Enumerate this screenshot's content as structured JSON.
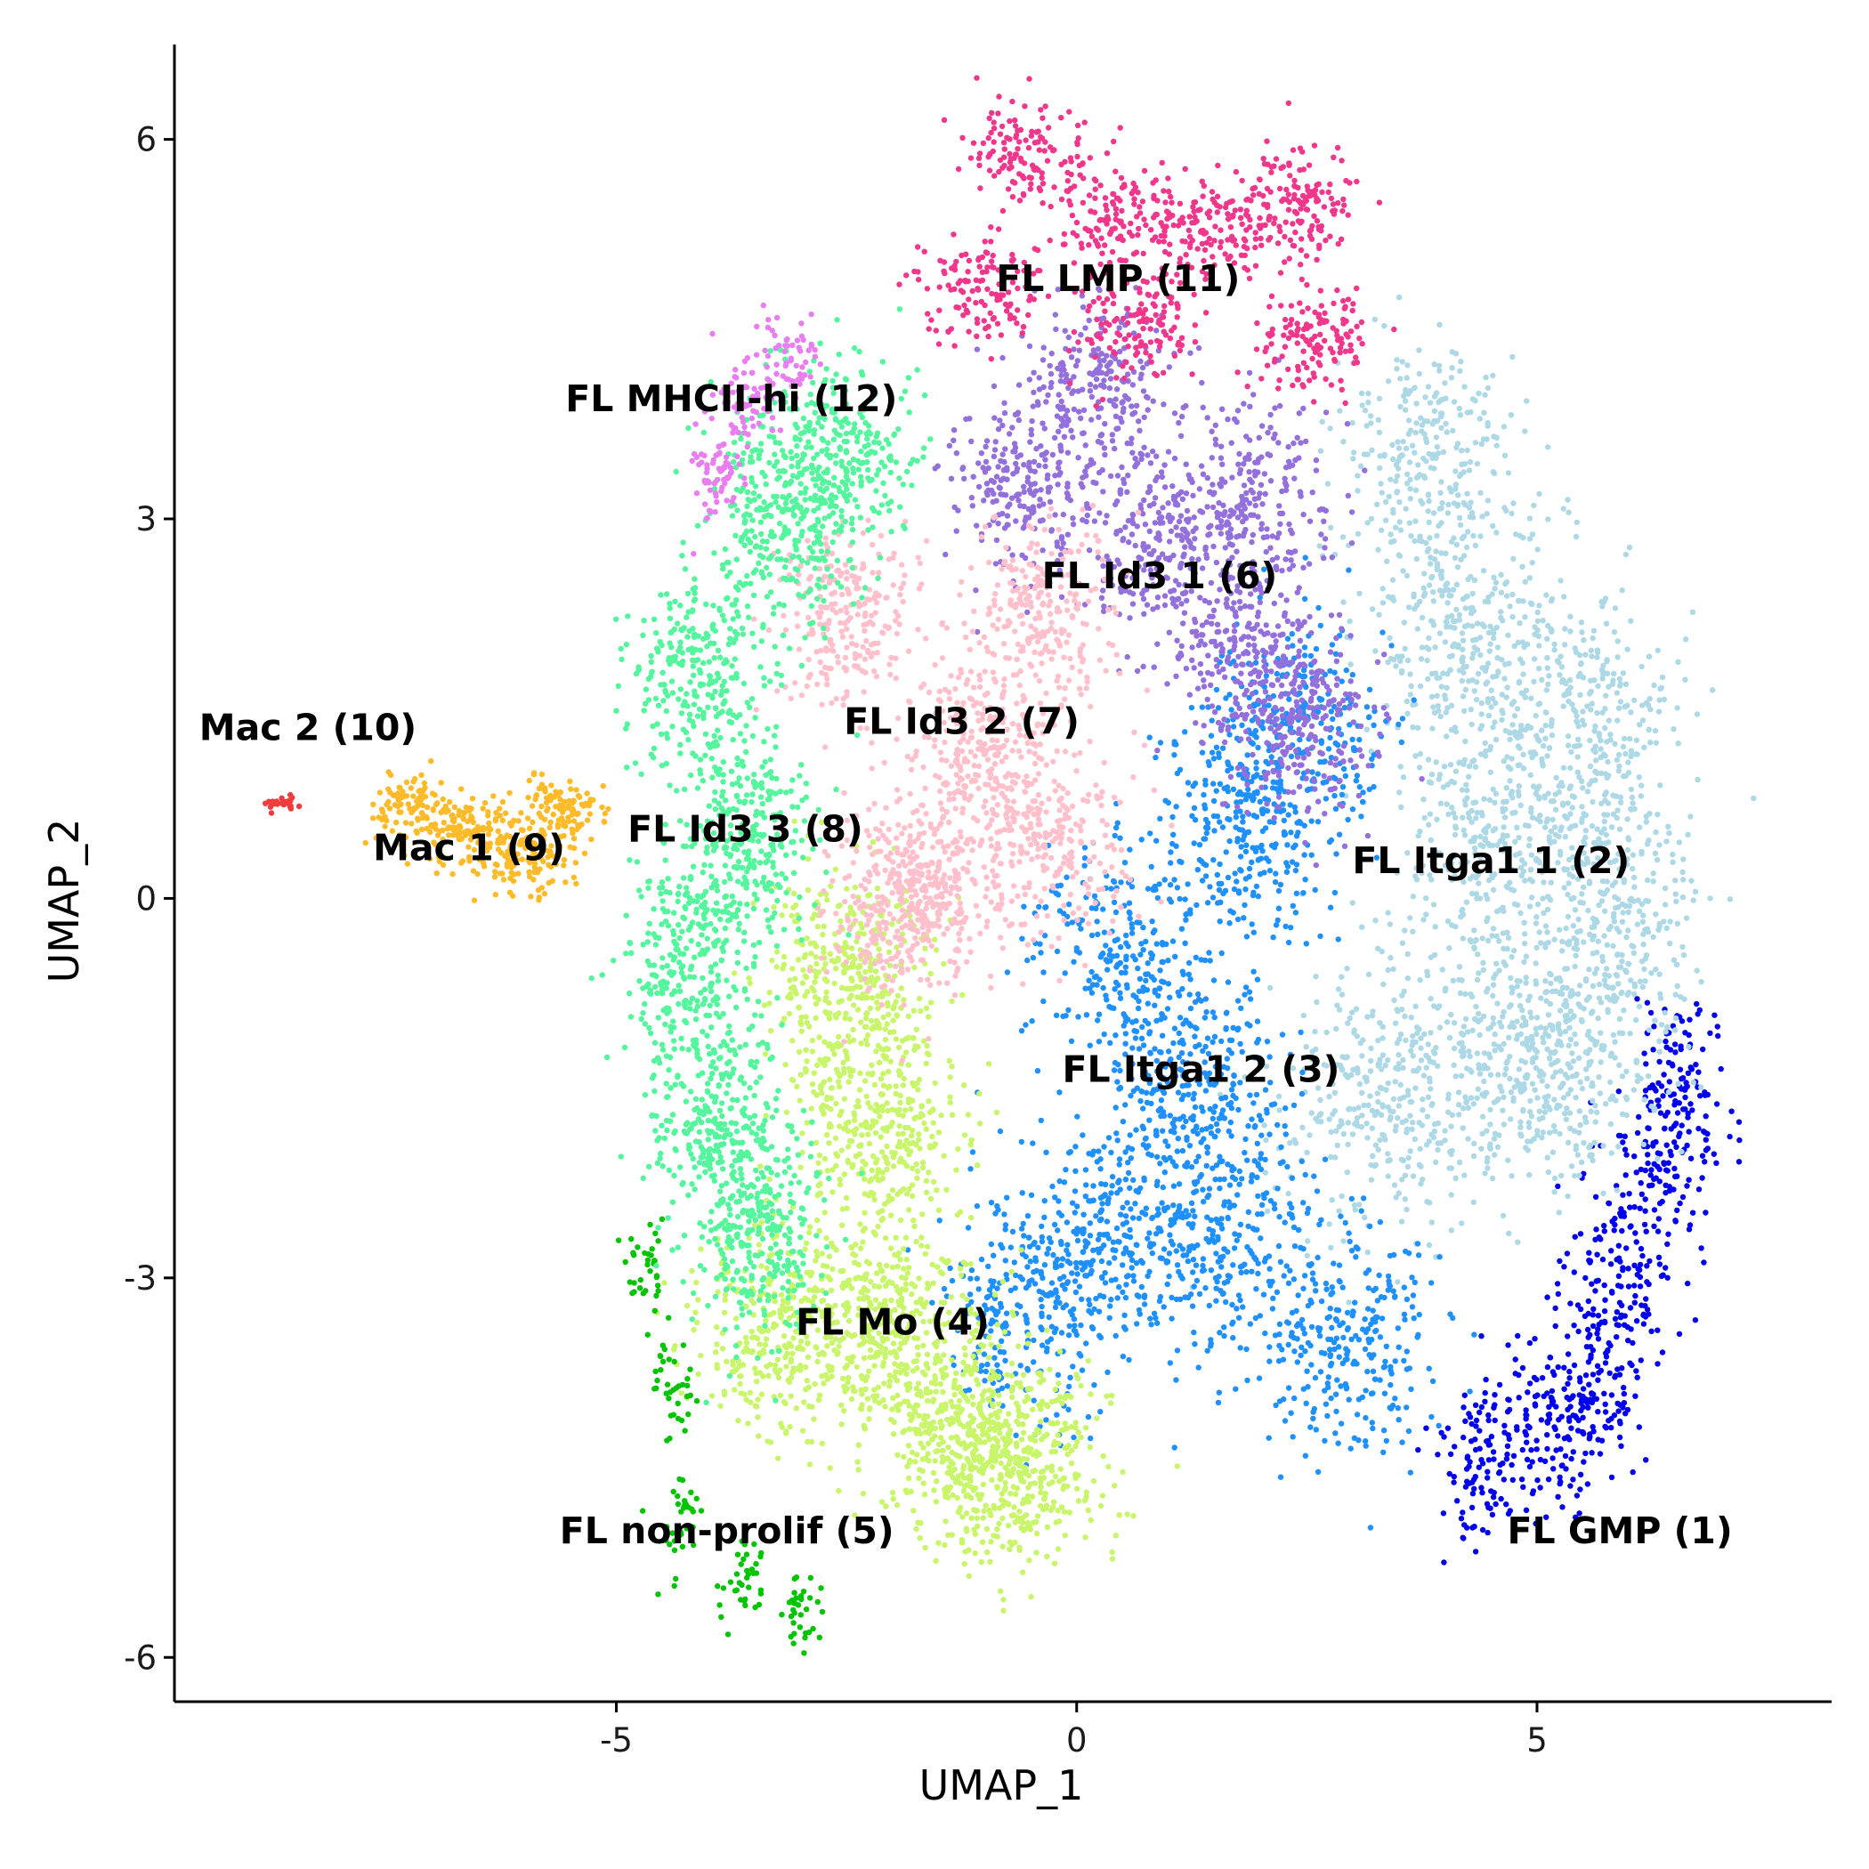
{
  "chart_data": {
    "type": "scatter",
    "title": "",
    "xlabel": "UMAP_1",
    "ylabel": "UMAP_2",
    "xlim": [
      -9.8,
      8.2
    ],
    "ylim": [
      -6.35,
      6.75
    ],
    "x_ticks": [
      {
        "value": -5,
        "label": "-5"
      },
      {
        "value": 0,
        "label": "0"
      },
      {
        "value": 5,
        "label": "5"
      }
    ],
    "y_ticks": [
      {
        "value": -6,
        "label": "-6"
      },
      {
        "value": -3,
        "label": "-3"
      },
      {
        "value": 0,
        "label": "0"
      },
      {
        "value": 3,
        "label": "3"
      },
      {
        "value": 6,
        "label": "6"
      }
    ],
    "grid": false,
    "legend": "none",
    "series": [
      {
        "name": "FL GMP (1)",
        "color": "#0000ee",
        "label_pos": [
          5.9,
          -5.0
        ],
        "centers": [
          [
            5.9,
            -3.0
          ],
          [
            5.6,
            -3.8
          ],
          [
            6.3,
            -2.2
          ],
          [
            5.2,
            -4.2
          ],
          [
            6.6,
            -1.5
          ],
          [
            4.4,
            -4.4
          ]
        ],
        "spread": [
          0.45,
          0.6
        ],
        "count": 700
      },
      {
        "name": "FL Itga1 1 (2)",
        "color": "#add8e6",
        "label_pos": [
          4.5,
          0.3
        ],
        "centers": [
          [
            4.5,
            0.5
          ],
          [
            4.2,
            2.0
          ],
          [
            3.8,
            3.4
          ],
          [
            5.5,
            1.5
          ],
          [
            5.8,
            0.0
          ],
          [
            4.6,
            -1.3
          ],
          [
            5.4,
            -1.2
          ],
          [
            3.2,
            -1.6
          ]
        ],
        "spread": [
          0.8,
          0.85
        ],
        "count": 2400
      },
      {
        "name": "FL Itga1 2 (3)",
        "color": "#1e90ff",
        "label_pos": [
          1.35,
          -1.35
        ],
        "centers": [
          [
            1.3,
            -1.5
          ],
          [
            0.5,
            -0.5
          ],
          [
            1.8,
            0.5
          ],
          [
            0.4,
            -2.6
          ],
          [
            1.7,
            -2.7
          ],
          [
            -0.5,
            -3.2
          ],
          [
            3.0,
            -3.5
          ],
          [
            2.4,
            1.4
          ]
        ],
        "spread": [
          0.8,
          0.7
        ],
        "count": 2200
      },
      {
        "name": "FL Mo (4)",
        "color": "#c8f56a",
        "label_pos": [
          -2.0,
          -3.35
        ],
        "centers": [
          [
            -2.0,
            -3.4
          ],
          [
            -2.2,
            -1.8
          ],
          [
            -1.3,
            -4.2
          ],
          [
            -3.2,
            -3.4
          ],
          [
            -0.6,
            -4.5
          ],
          [
            -2.5,
            -0.6
          ]
        ],
        "spread": [
          0.75,
          0.65
        ],
        "count": 2200
      },
      {
        "name": "FL non-prolif (5)",
        "color": "#00c400",
        "label_pos": [
          -3.8,
          -5.0
        ],
        "centers": [
          [
            -4.4,
            -3.9
          ],
          [
            -4.3,
            -4.9
          ],
          [
            -3.6,
            -5.4
          ],
          [
            -4.7,
            -2.9
          ],
          [
            -3.0,
            -5.7
          ]
        ],
        "spread": [
          0.22,
          0.3
        ],
        "count": 180
      },
      {
        "name": "FL Id3 1 (6)",
        "color": "#9370db",
        "label_pos": [
          0.9,
          2.55
        ],
        "centers": [
          [
            0.9,
            2.8
          ],
          [
            0.2,
            4.0
          ],
          [
            1.9,
            3.2
          ],
          [
            1.8,
            2.0
          ],
          [
            -0.6,
            3.2
          ],
          [
            2.4,
            1.3
          ]
        ],
        "spread": [
          0.7,
          0.6
        ],
        "count": 1400
      },
      {
        "name": "FL Id3 2 (7)",
        "color": "#ffc0cb",
        "label_pos": [
          -1.25,
          1.4
        ],
        "centers": [
          [
            -1.0,
            1.2
          ],
          [
            -1.6,
            0.2
          ],
          [
            -0.3,
            0.4
          ],
          [
            -2.5,
            2.2
          ],
          [
            -0.4,
            2.2
          ],
          [
            -1.9,
            -0.1
          ]
        ],
        "spread": [
          0.65,
          0.6
        ],
        "count": 1500
      },
      {
        "name": "FL Id3 3 (8)",
        "color": "#54f59d",
        "label_pos": [
          -3.6,
          0.55
        ],
        "centers": [
          [
            -3.6,
            0.5
          ],
          [
            -4.1,
            1.8
          ],
          [
            -3.2,
            3.0
          ],
          [
            -4.2,
            -0.5
          ],
          [
            -3.9,
            -1.8
          ],
          [
            -2.6,
            3.5
          ],
          [
            -3.5,
            -2.7
          ]
        ],
        "spread": [
          0.6,
          0.65
        ],
        "count": 2000
      },
      {
        "name": "Mac 1 (9)",
        "color": "#fdbb2a",
        "label_pos": [
          -6.6,
          0.4
        ],
        "centers": [
          [
            -6.6,
            0.5
          ],
          [
            -7.2,
            0.7
          ],
          [
            -6.0,
            0.3
          ],
          [
            -5.6,
            0.7
          ]
        ],
        "spread": [
          0.4,
          0.22
        ],
        "count": 450
      },
      {
        "name": "Mac 2 (10)",
        "color": "#f03c3c",
        "label_pos": [
          -8.35,
          1.35
        ],
        "centers": [
          [
            -8.65,
            0.75
          ]
        ],
        "spread": [
          0.14,
          0.06
        ],
        "count": 28
      },
      {
        "name": "FL LMP (11)",
        "color": "#f0378c",
        "label_pos": [
          0.45,
          4.9
        ],
        "centers": [
          [
            0.4,
            5.4
          ],
          [
            -0.6,
            5.9
          ],
          [
            1.5,
            5.3
          ],
          [
            2.4,
            5.5
          ],
          [
            -1.0,
            4.8
          ],
          [
            2.6,
            4.4
          ],
          [
            0.6,
            4.5
          ]
        ],
        "spread": [
          0.55,
          0.35
        ],
        "count": 950
      },
      {
        "name": "FL MHCII-hi (12)",
        "color": "#e87ef0",
        "label_pos": [
          -3.75,
          3.95
        ],
        "centers": [
          [
            -3.6,
            3.9
          ],
          [
            -3.2,
            4.3
          ],
          [
            -3.9,
            3.3
          ]
        ],
        "spread": [
          0.3,
          0.3
        ],
        "count": 190
      }
    ]
  }
}
